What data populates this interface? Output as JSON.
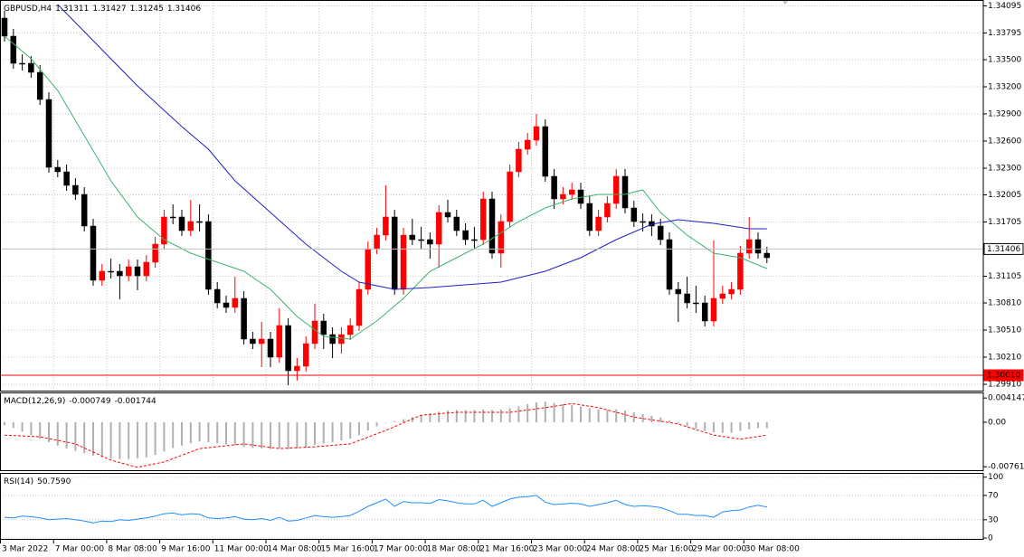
{
  "chart_data": [
    {
      "type": "candlestick",
      "title": "GBPUSD,H4",
      "ohlc_header": [
        1.31311,
        1.31427,
        1.31245,
        1.31406
      ],
      "up_color": "#ff0000",
      "down_color": "#000000",
      "grid": true,
      "ylim": [
        1.2984,
        1.3416
      ],
      "yticks": [
        1.34095,
        1.33795,
        {
          "value": 1.335,
          "label": "1.33500"
        },
        {
          "value": 1.332,
          "label": "1.33200"
        },
        {
          "value": 1.329,
          "label": "1.32900"
        },
        {
          "value": 1.326,
          "label": "1.32600"
        },
        {
          "value": 1.323,
          "label": "1.32300"
        },
        1.32005,
        1.31705,
        1.31105,
        {
          "value": 1.3081,
          "label": "1.30810"
        },
        {
          "value": 1.3051,
          "label": "1.30510"
        },
        {
          "value": 1.3021,
          "label": "1.30210"
        },
        {
          "value": 1.2991,
          "label": "1.29910"
        }
      ],
      "levels": [
        {
          "value": 1.31406,
          "color": "#c0c0c0"
        },
        {
          "value": 1.3001,
          "label": "1.30010",
          "color": "#ff0000"
        }
      ],
      "candles": [
        [
          1.3396,
          1.3404,
          1.337,
          1.3376
        ],
        [
          1.3376,
          1.3384,
          1.334,
          1.3346
        ],
        [
          1.3346,
          1.3356,
          1.3338,
          1.3346
        ],
        [
          1.3346,
          1.3354,
          1.333,
          1.3336
        ],
        [
          1.3336,
          1.3344,
          1.33,
          1.3306
        ],
        [
          1.3306,
          1.3314,
          1.3225,
          1.3231
        ],
        [
          1.3231,
          1.3239,
          1.322,
          1.3226
        ],
        [
          1.3226,
          1.3234,
          1.3205,
          1.3211
        ],
        [
          1.3211,
          1.3219,
          1.3195,
          1.3201
        ],
        [
          1.3201,
          1.3209,
          1.316,
          1.3166
        ],
        [
          1.3166,
          1.3174,
          1.31,
          1.3106
        ],
        [
          1.3106,
          1.3124,
          1.31,
          1.3116
        ],
        [
          1.3116,
          1.313,
          1.3108,
          1.3116
        ],
        [
          1.3116,
          1.3124,
          1.3085,
          1.3111
        ],
        [
          1.3111,
          1.3129,
          1.3105,
          1.3121
        ],
        [
          1.3121,
          1.3129,
          1.3095,
          1.3111
        ],
        [
          1.3111,
          1.3134,
          1.3105,
          1.3126
        ],
        [
          1.3126,
          1.3154,
          1.312,
          1.3146
        ],
        [
          1.3146,
          1.3184,
          1.314,
          1.3176
        ],
        [
          1.3176,
          1.319,
          1.3168,
          1.3176
        ],
        [
          1.3176,
          1.3184,
          1.3155,
          1.3161
        ],
        [
          1.3161,
          1.3195,
          1.3155,
          1.3171
        ],
        [
          1.3171,
          1.319,
          1.316,
          1.3171
        ],
        [
          1.3171,
          1.3179,
          1.309,
          1.3096
        ],
        [
          1.3096,
          1.3104,
          1.3075,
          1.3081
        ],
        [
          1.3081,
          1.3089,
          1.307,
          1.3076
        ],
        [
          1.3076,
          1.311,
          1.307,
          1.3086
        ],
        [
          1.3086,
          1.3094,
          1.3035,
          1.3041
        ],
        [
          1.3041,
          1.3049,
          1.303,
          1.3036
        ],
        [
          1.3036,
          1.306,
          1.301,
          1.3041
        ],
        [
          1.3041,
          1.3049,
          1.301,
          1.3021
        ],
        [
          1.3021,
          1.3075,
          1.3015,
          1.3056
        ],
        [
          1.3056,
          1.3064,
          1.299,
          1.3006
        ],
        [
          1.3006,
          1.302,
          1.2995,
          1.3011
        ],
        [
          1.3011,
          1.3044,
          1.3005,
          1.3036
        ],
        [
          1.3036,
          1.308,
          1.303,
          1.3061
        ],
        [
          1.3061,
          1.3069,
          1.303,
          1.3046
        ],
        [
          1.3046,
          1.3054,
          1.302,
          1.3036
        ],
        [
          1.3036,
          1.3054,
          1.3025,
          1.3046
        ],
        [
          1.3046,
          1.3064,
          1.304,
          1.3056
        ],
        [
          1.3056,
          1.3104,
          1.305,
          1.3096
        ],
        [
          1.3096,
          1.3149,
          1.309,
          1.3141
        ],
        [
          1.3141,
          1.3164,
          1.3135,
          1.3156
        ],
        [
          1.3156,
          1.3211,
          1.315,
          1.3176
        ],
        [
          1.3176,
          1.3184,
          1.309,
          1.3096
        ],
        [
          1.3096,
          1.3164,
          1.309,
          1.3156
        ],
        [
          1.3156,
          1.3174,
          1.3145,
          1.3151
        ],
        [
          1.3151,
          1.3165,
          1.314,
          1.3151
        ],
        [
          1.3151,
          1.3159,
          1.313,
          1.3146
        ],
        [
          1.3146,
          1.3189,
          1.312,
          1.3181
        ],
        [
          1.3181,
          1.3195,
          1.317,
          1.3176
        ],
        [
          1.3176,
          1.3184,
          1.3155,
          1.3161
        ],
        [
          1.3161,
          1.3169,
          1.3145,
          1.3151
        ],
        [
          1.3151,
          1.3165,
          1.314,
          1.3151
        ],
        [
          1.3151,
          1.3204,
          1.3145,
          1.3196
        ],
        [
          1.3196,
          1.3204,
          1.313,
          1.3136
        ],
        [
          1.3136,
          1.3179,
          1.312,
          1.3171
        ],
        [
          1.3171,
          1.3234,
          1.3165,
          1.3226
        ],
        [
          1.3226,
          1.3259,
          1.322,
          1.3251
        ],
        [
          1.3251,
          1.3269,
          1.3245,
          1.3261
        ],
        [
          1.3261,
          1.329,
          1.3255,
          1.3276
        ],
        [
          1.3276,
          1.3284,
          1.3215,
          1.3221
        ],
        [
          1.3221,
          1.3229,
          1.3185,
          1.3196
        ],
        [
          1.3196,
          1.3209,
          1.319,
          1.3201
        ],
        [
          1.3201,
          1.3214,
          1.3195,
          1.3206
        ],
        [
          1.3206,
          1.3214,
          1.3185,
          1.3191
        ],
        [
          1.3191,
          1.3199,
          1.3155,
          1.3161
        ],
        [
          1.3161,
          1.3184,
          1.3155,
          1.3176
        ],
        [
          1.3176,
          1.3199,
          1.317,
          1.3191
        ],
        [
          1.3191,
          1.3229,
          1.3185,
          1.3221
        ],
        [
          1.3221,
          1.3229,
          1.318,
          1.3186
        ],
        [
          1.3186,
          1.3194,
          1.3165,
          1.3171
        ],
        [
          1.3171,
          1.318,
          1.316,
          1.3171
        ],
        [
          1.3171,
          1.3179,
          1.3155,
          1.3166
        ],
        [
          1.3166,
          1.3174,
          1.3145,
          1.3151
        ],
        [
          1.3151,
          1.3159,
          1.309,
          1.3096
        ],
        [
          1.3096,
          1.3104,
          1.306,
          1.3091
        ],
        [
          1.3091,
          1.311,
          1.3075,
          1.3081
        ],
        [
          1.3081,
          1.31,
          1.307,
          1.3081
        ],
        [
          1.3081,
          1.3089,
          1.3055,
          1.3061
        ],
        [
          1.3061,
          1.315,
          1.3055,
          1.3086
        ],
        [
          1.3086,
          1.31,
          1.308,
          1.3091
        ],
        [
          1.3091,
          1.3104,
          1.3085,
          1.3096
        ],
        [
          1.3096,
          1.3144,
          1.309,
          1.3136
        ],
        [
          1.3136,
          1.3176,
          1.313,
          1.3151
        ],
        [
          1.3151,
          1.3159,
          1.313,
          1.3136
        ],
        [
          1.3136,
          1.3143,
          1.3125,
          1.3131
        ]
      ],
      "series": [
        {
          "color": "#3cb371",
          "x": [
            0,
            3,
            6,
            9,
            12,
            15,
            18,
            21,
            24,
            27,
            30,
            33,
            36,
            39,
            42,
            45,
            48,
            51,
            54,
            58,
            61,
            64,
            67,
            70,
            72,
            74,
            77,
            80,
            83,
            86
          ],
          "values": [
            1.3376,
            1.3351,
            1.3316,
            1.3266,
            1.3216,
            1.3176,
            1.3151,
            1.3136,
            1.3126,
            1.3116,
            1.3096,
            1.3066,
            1.3044,
            1.3041,
            1.3061,
            1.3086,
            1.3116,
            1.3131,
            1.3146,
            1.3171,
            1.3186,
            1.3196,
            1.3201,
            1.3201,
            1.3206,
            1.3181,
            1.3156,
            1.3136,
            1.3131,
            1.3119
          ]
        },
        {
          "color": "#2020c0",
          "x": [
            6,
            10,
            15,
            20,
            23,
            26,
            30,
            34,
            38,
            40,
            44,
            48,
            52,
            56,
            61,
            65,
            69,
            73,
            76,
            80,
            84,
            86
          ],
          "values": [
            1.3411,
            1.3371,
            1.3321,
            1.3276,
            1.3251,
            1.3216,
            1.3181,
            1.3146,
            1.3116,
            1.3104,
            1.3096,
            1.3098,
            1.3101,
            1.3104,
            1.3116,
            1.3131,
            1.3151,
            1.3168,
            1.3173,
            1.3169,
            1.3163,
            1.3163
          ]
        }
      ]
    },
    {
      "type": "macd",
      "title": "MACD(12,26,9)",
      "header_values": [
        -0.000749,
        -0.001744
      ],
      "ylim": [
        -0.0082,
        0.0051
      ],
      "yticks": [
        0.004147,
        {
          "value": 0,
          "label": "0.00"
        },
        -0.007613
      ],
      "histogram_color": "#b0b0b0",
      "histogram": [
        -0.0005,
        -0.001,
        -0.0016,
        -0.0022,
        -0.0028,
        -0.0034,
        -0.004,
        -0.0045,
        -0.0049,
        -0.0053,
        -0.0057,
        -0.006,
        -0.0062,
        -0.0063,
        -0.0063,
        -0.0062,
        -0.006,
        -0.0056,
        -0.005,
        -0.0044,
        -0.004,
        -0.0036,
        -0.0033,
        -0.0034,
        -0.0036,
        -0.0038,
        -0.0039,
        -0.0042,
        -0.0044,
        -0.0045,
        -0.0046,
        -0.0045,
        -0.0046,
        -0.0045,
        -0.0043,
        -0.0039,
        -0.0036,
        -0.0034,
        -0.0031,
        -0.0028,
        -0.0022,
        -0.0014,
        -0.0007,
        0.0,
        0.0002,
        0.0005,
        0.0009,
        0.0012,
        0.0015,
        0.0018,
        0.002,
        0.0021,
        0.0021,
        0.0021,
        0.0022,
        0.0021,
        0.0022,
        0.0024,
        0.0027,
        0.0031,
        0.0034,
        0.0035,
        0.0033,
        0.0031,
        0.0029,
        0.0027,
        0.0024,
        0.0022,
        0.0021,
        0.0022,
        0.002,
        0.0017,
        0.0014,
        0.0011,
        0.0008,
        0.0003,
        -0.0002,
        -0.0007,
        -0.0011,
        -0.0015,
        -0.0017,
        -0.0018,
        -0.0018,
        -0.0015,
        -0.0012,
        -0.001,
        -0.001
      ],
      "series": [
        {
          "color": "#ff0000",
          "x": [
            0,
            4,
            8,
            12,
            15,
            18,
            22,
            27,
            31,
            35,
            39,
            43,
            47,
            51,
            57,
            61,
            64,
            67,
            71,
            76,
            80,
            83,
            86
          ],
          "values": [
            -0.0022,
            -0.0025,
            -0.0037,
            -0.0065,
            -0.0077,
            -0.0068,
            -0.0045,
            -0.0037,
            -0.0045,
            -0.0042,
            -0.0037,
            -0.0014,
            0.0012,
            0.0017,
            0.0017,
            0.0025,
            0.0032,
            0.0025,
            0.0009,
            -0.0003,
            -0.0022,
            -0.0029,
            -0.0022
          ]
        }
      ]
    },
    {
      "type": "line",
      "title": "RSI(14)",
      "last_value": {
        "value": 50.759,
        "label": "50.7590"
      },
      "ylim": [
        -1.5,
        107
      ],
      "yticks": [
        100,
        70,
        30,
        0
      ],
      "grid": true,
      "color": "#1e90ff",
      "values": [
        34,
        33,
        36,
        35,
        33,
        30,
        31,
        32,
        30,
        28,
        25,
        28,
        27,
        30,
        29,
        31,
        33,
        36,
        40,
        41,
        38,
        40,
        39,
        33,
        32,
        33,
        35,
        31,
        30,
        32,
        29,
        34,
        28,
        29,
        33,
        37,
        35,
        34,
        35,
        37,
        44,
        52,
        58,
        64,
        52,
        60,
        58,
        58,
        57,
        63,
        61,
        58,
        56,
        56,
        62,
        52,
        58,
        64,
        67,
        68,
        70,
        59,
        55,
        56,
        57,
        56,
        52,
        55,
        58,
        62,
        55,
        52,
        53,
        52,
        50,
        45,
        39,
        39,
        37,
        37,
        34,
        43,
        45,
        46,
        51,
        54,
        50.759
      ]
    }
  ],
  "time_axis": [
    "3 Mar 2022",
    "7 Mar 00:00",
    "8 Mar 08:00",
    "9 Mar 16:00",
    "11 Mar 00:00",
    "14 Mar 08:00",
    "15 Mar 16:00",
    "17 Mar 00:00",
    "18 Mar 08:00",
    "21 Mar 16:00",
    "23 Mar 00:00",
    "24 Mar 08:00",
    "25 Mar 16:00",
    "29 Mar 00:00",
    "30 Mar 08:00"
  ]
}
